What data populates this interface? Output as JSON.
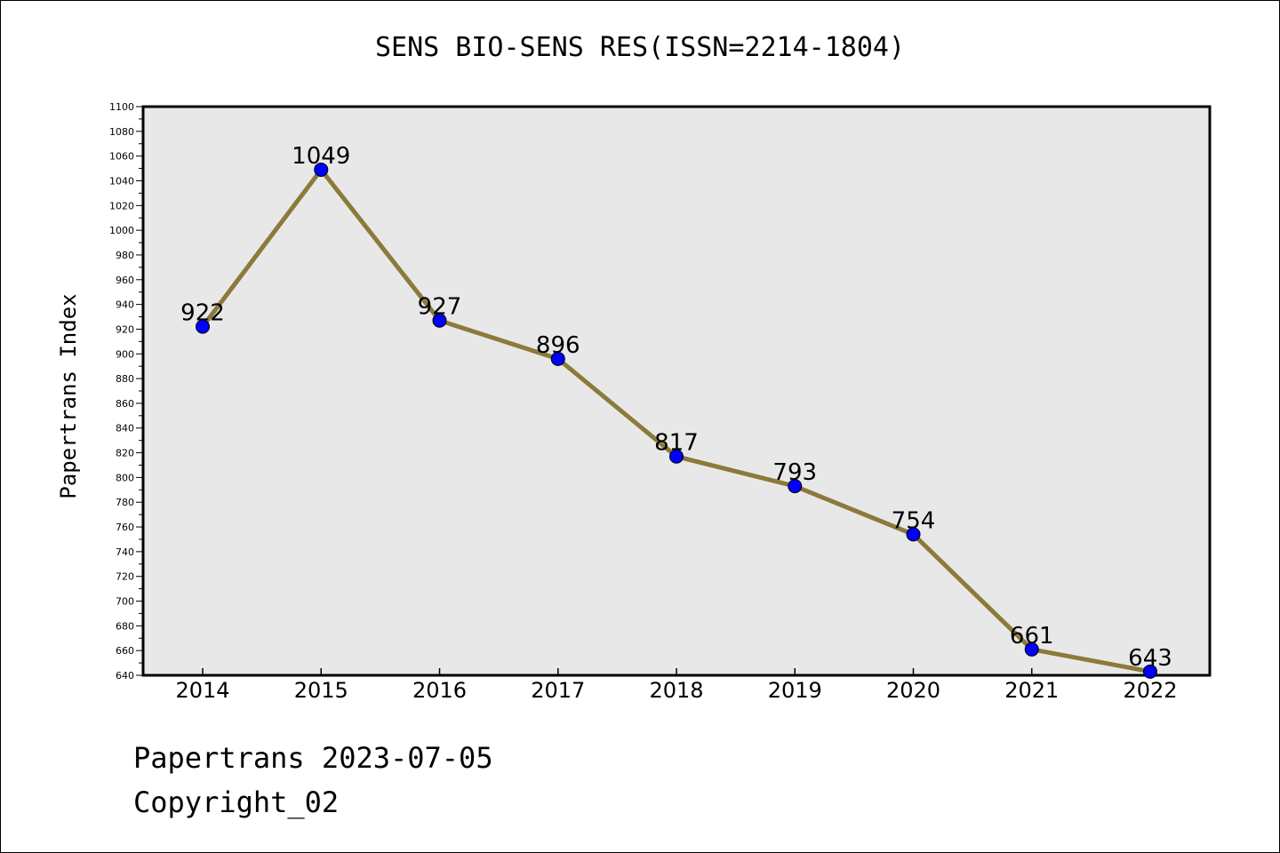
{
  "chart_data": {
    "type": "line",
    "title": "SENS BIO-SENS RES(ISSN=2214-1804)",
    "ylabel": "Papertrans Index",
    "xlabel": "",
    "categories": [
      "2014",
      "2015",
      "2016",
      "2017",
      "2018",
      "2019",
      "2020",
      "2021",
      "2022"
    ],
    "values": [
      922,
      1049,
      927,
      896,
      817,
      793,
      754,
      661,
      643
    ],
    "ylim": [
      640,
      1100
    ],
    "ytick_step": 20,
    "data_labels": true,
    "grid": false,
    "colors": {
      "line": "#8b7a3a",
      "marker": "#0000ff",
      "plot_background": "#e8e8e8"
    }
  },
  "footer": {
    "date_text": "Papertrans 2023-07-05",
    "copyright_text": "Copyright_02"
  }
}
